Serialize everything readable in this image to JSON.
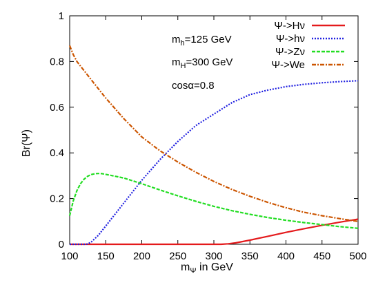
{
  "chart_data": {
    "type": "line",
    "title": "",
    "xlabel": "m_Ψ in GeV",
    "xlabel_main": "m",
    "xlabel_sub": "Ψ",
    "xlabel_rest": " in GeV",
    "ylabel": "Br(Ψ)",
    "xlim": [
      100,
      500
    ],
    "ylim": [
      0,
      1
    ],
    "xticks": [
      "100",
      "150",
      "200",
      "250",
      "300",
      "350",
      "400",
      "450",
      "500"
    ],
    "yticks": [
      "0",
      "0.2",
      "0.4",
      "0.6",
      "0.8",
      "1"
    ],
    "grid": false,
    "legend_position": "top-right",
    "series": [
      {
        "name": "Ψ->Hν",
        "color": "#e41a1c",
        "style": "solid",
        "x": [
          100,
          150,
          200,
          250,
          300,
          310,
          320,
          330,
          350,
          375,
          400,
          425,
          450,
          475,
          500
        ],
        "y": [
          0,
          0,
          0,
          0,
          0,
          0,
          0.002,
          0.006,
          0.018,
          0.035,
          0.052,
          0.068,
          0.083,
          0.097,
          0.11
        ]
      },
      {
        "name": "Ψ->hν",
        "color": "#2020e0",
        "style": "dotted",
        "x": [
          100,
          120,
          125,
          130,
          140,
          150,
          175,
          200,
          225,
          250,
          275,
          300,
          325,
          350,
          375,
          400,
          425,
          450,
          475,
          500
        ],
        "y": [
          0,
          0,
          0.001,
          0.01,
          0.04,
          0.08,
          0.18,
          0.28,
          0.37,
          0.45,
          0.52,
          0.57,
          0.62,
          0.655,
          0.675,
          0.69,
          0.7,
          0.707,
          0.712,
          0.716
        ]
      },
      {
        "name": "Ψ->Zν",
        "color": "#22dd22",
        "style": "dashed",
        "x": [
          100,
          105,
          110,
          115,
          120,
          125,
          130,
          135,
          140,
          145,
          150,
          175,
          200,
          225,
          250,
          275,
          300,
          325,
          350,
          375,
          400,
          425,
          450,
          475,
          500
        ],
        "y": [
          0.125,
          0.19,
          0.235,
          0.265,
          0.285,
          0.298,
          0.305,
          0.309,
          0.31,
          0.309,
          0.306,
          0.29,
          0.265,
          0.238,
          0.212,
          0.188,
          0.166,
          0.147,
          0.131,
          0.117,
          0.105,
          0.095,
          0.086,
          0.077,
          0.07
        ]
      },
      {
        "name": "Ψ->We",
        "color": "#cc5500",
        "style": "dash-dot",
        "x": [
          100,
          105,
          110,
          120,
          130,
          150,
          175,
          200,
          225,
          250,
          275,
          300,
          325,
          350,
          375,
          400,
          425,
          450,
          475,
          500
        ],
        "y": [
          0.87,
          0.83,
          0.8,
          0.76,
          0.72,
          0.64,
          0.55,
          0.47,
          0.41,
          0.36,
          0.315,
          0.275,
          0.24,
          0.21,
          0.183,
          0.16,
          0.14,
          0.125,
          0.112,
          0.1
        ]
      }
    ],
    "annotations": [
      {
        "main": "m",
        "sub": "h",
        "rest": "=125 GeV"
      },
      {
        "main": "m",
        "sub": "H",
        "rest": "=300 GeV"
      },
      {
        "main": "cosα=0.8",
        "sub": "",
        "rest": ""
      }
    ]
  }
}
